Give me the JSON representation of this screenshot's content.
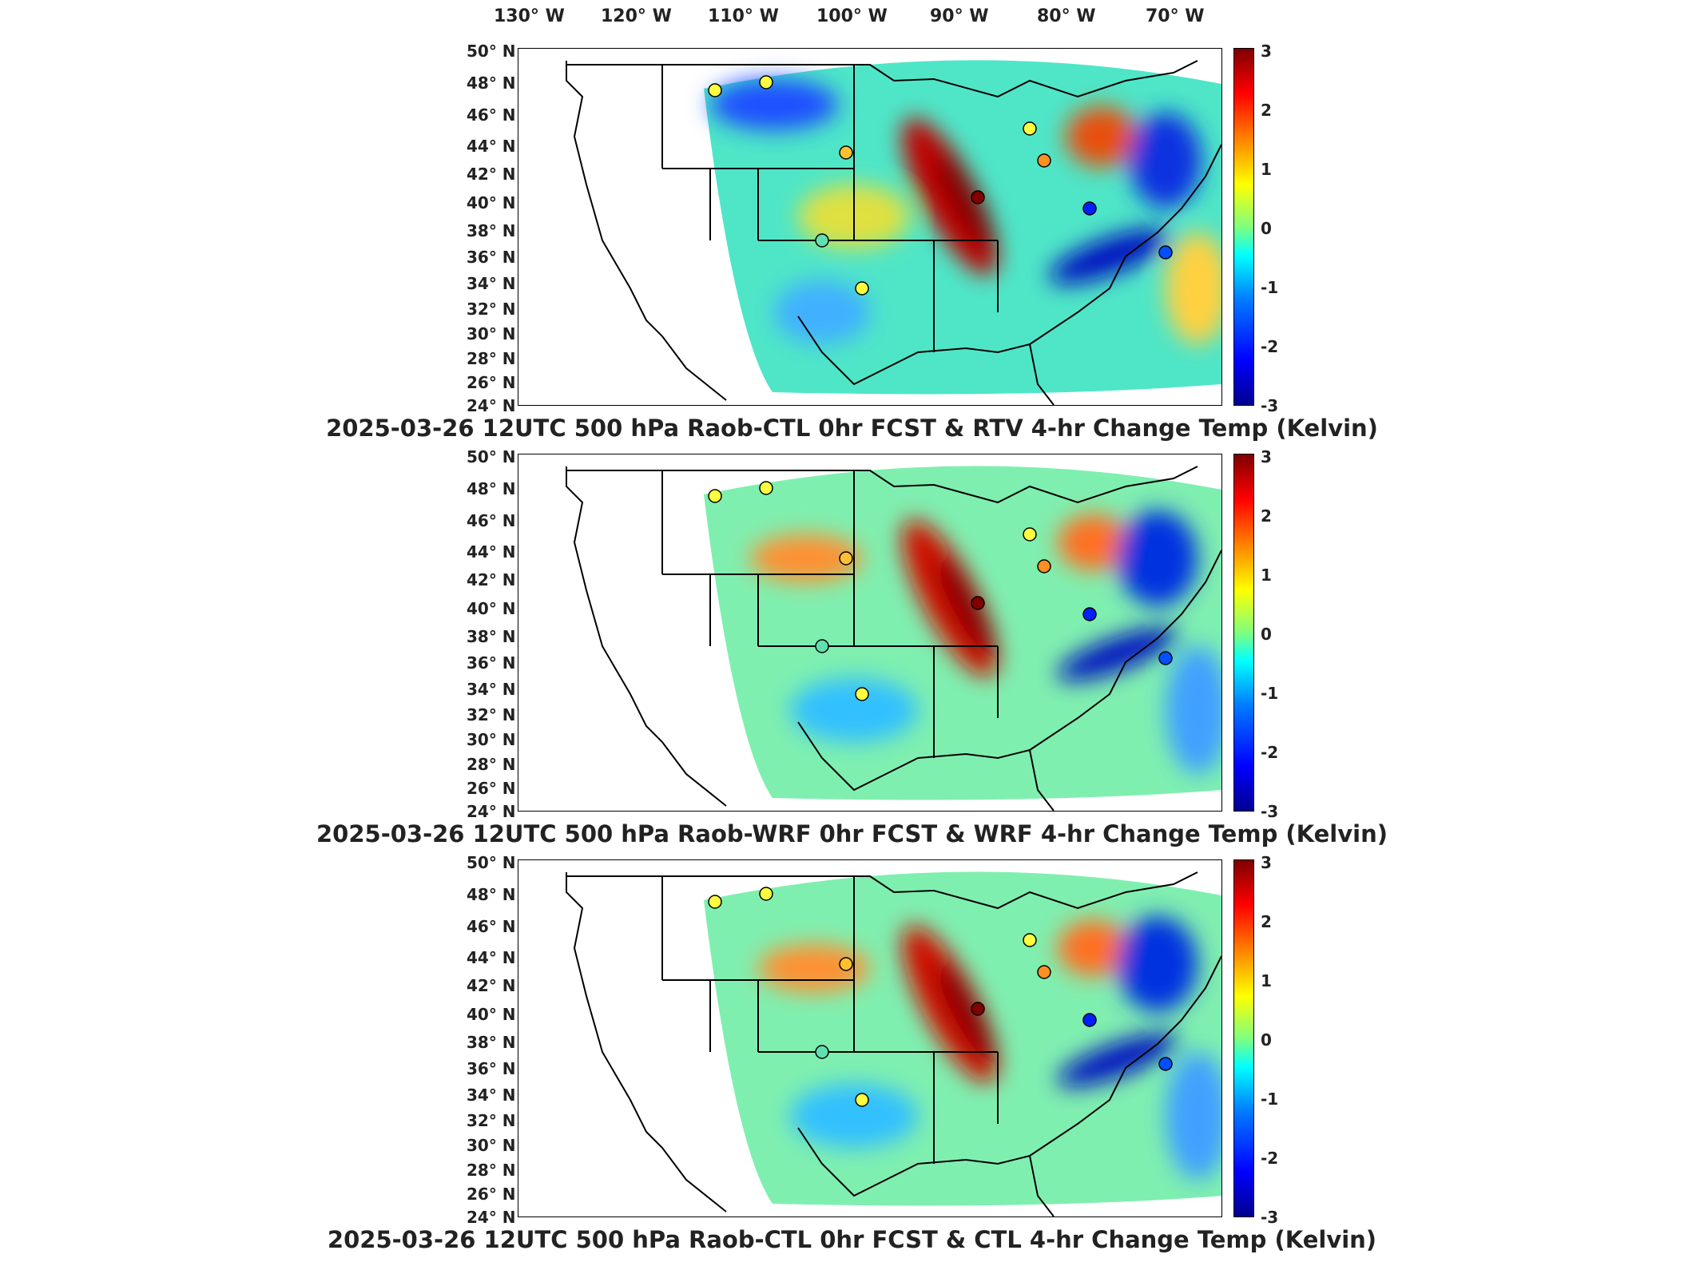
{
  "longitude_labels": [
    "130° W",
    "120° W",
    "110° W",
    "100° W",
    "90° W",
    "80° W",
    "70° W"
  ],
  "latitude_labels": [
    "50° N",
    "48° N",
    "46° N",
    "44° N",
    "42° N",
    "40° N",
    "38° N",
    "36° N",
    "34° N",
    "32° N",
    "30° N",
    "28° N",
    "26° N",
    "24° N"
  ],
  "colorbar": {
    "ticks": [
      "3",
      "2",
      "1",
      "0",
      "-1",
      "-2",
      "-3"
    ],
    "min": -3,
    "max": 3,
    "colormap": "jet"
  },
  "panels": [
    {
      "title": "2025-03-26 12UTC 500 hPa Raob-CTL 0hr FCST & RTV 4-hr Change Temp (Kelvin)"
    },
    {
      "title": "2025-03-26 12UTC 500 hPa Raob-WRF 0hr FCST & WRF 4-hr Change Temp (Kelvin)"
    },
    {
      "title": "2025-03-26 12UTC 500 hPa Raob-CTL 0hr FCST & CTL 4-hr Change Temp (Kelvin)"
    }
  ],
  "colors": {
    "cold": "#0000cc",
    "warm": "#cc0000",
    "neutral": "#40e0d0"
  }
}
